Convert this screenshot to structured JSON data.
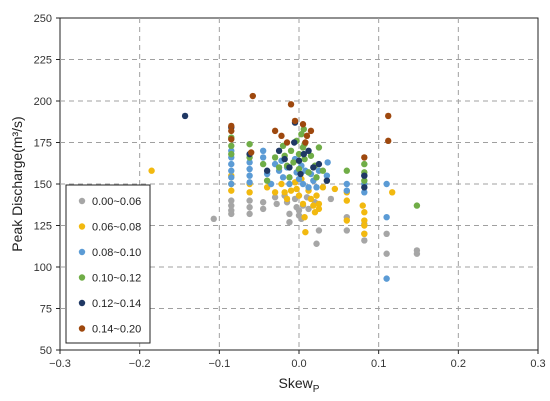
{
  "chart_data": {
    "type": "scatter",
    "xlabel": "Skew",
    "xlabel_sub": "P",
    "ylabel": "Peak Discharge(m³/s)",
    "xlim": [
      -0.3,
      0.3
    ],
    "ylim": [
      50,
      250
    ],
    "xticks": [
      -0.3,
      -0.2,
      -0.1,
      0.0,
      0.1,
      0.2,
      0.3
    ],
    "xtick_labels": [
      "−0.3",
      "−0.2",
      "−0.1",
      "0.0",
      "0.1",
      "0.2",
      "0.3"
    ],
    "yticks": [
      50,
      75,
      100,
      125,
      150,
      175,
      200,
      225,
      250
    ],
    "ytick_labels": [
      "50",
      "75",
      "100",
      "125",
      "150",
      "175",
      "200",
      "225",
      "250"
    ],
    "grid": true,
    "legend_position": "bottom-left",
    "series": [
      {
        "name": "0.00~0.06",
        "color": "#a6a6a6",
        "points": [
          [
            -0.107,
            129
          ],
          [
            -0.085,
            140
          ],
          [
            -0.085,
            137
          ],
          [
            -0.085,
            134
          ],
          [
            -0.085,
            132
          ],
          [
            -0.062,
            140
          ],
          [
            -0.062,
            136
          ],
          [
            -0.062,
            132
          ],
          [
            -0.045,
            139
          ],
          [
            -0.045,
            135
          ],
          [
            -0.03,
            142
          ],
          [
            -0.028,
            138
          ],
          [
            -0.018,
            143
          ],
          [
            -0.015,
            139
          ],
          [
            -0.012,
            132
          ],
          [
            -0.005,
            141
          ],
          [
            -0.003,
            136
          ],
          [
            0.0,
            134
          ],
          [
            0.0,
            131
          ],
          [
            0.003,
            129
          ],
          [
            0.005,
            137
          ],
          [
            0.01,
            142
          ],
          [
            0.012,
            135
          ],
          [
            0.02,
            139
          ],
          [
            0.022,
            114
          ],
          [
            0.025,
            122
          ],
          [
            0.04,
            141
          ],
          [
            0.06,
            130
          ],
          [
            0.06,
            122
          ],
          [
            0.082,
            126
          ],
          [
            0.082,
            120
          ],
          [
            0.082,
            116
          ],
          [
            0.11,
            108
          ],
          [
            0.11,
            120
          ],
          [
            0.148,
            110
          ],
          [
            0.148,
            108
          ],
          [
            -0.012,
            127
          ]
        ]
      },
      {
        "name": "0.06~0.08",
        "color": "#f2b90f",
        "points": [
          [
            -0.185,
            158
          ],
          [
            -0.085,
            155
          ],
          [
            -0.085,
            150
          ],
          [
            -0.085,
            146
          ],
          [
            -0.062,
            150
          ],
          [
            -0.062,
            145
          ],
          [
            -0.04,
            148
          ],
          [
            -0.03,
            145
          ],
          [
            -0.022,
            150
          ],
          [
            -0.018,
            145
          ],
          [
            -0.015,
            141
          ],
          [
            -0.01,
            146
          ],
          [
            -0.005,
            151
          ],
          [
            -0.003,
            147
          ],
          [
            0.0,
            143
          ],
          [
            0.003,
            153
          ],
          [
            0.005,
            138
          ],
          [
            0.007,
            130
          ],
          [
            0.008,
            121
          ],
          [
            0.012,
            146
          ],
          [
            0.015,
            141
          ],
          [
            0.018,
            137
          ],
          [
            0.02,
            133
          ],
          [
            0.022,
            143
          ],
          [
            0.025,
            138
          ],
          [
            0.025,
            135
          ],
          [
            0.03,
            148
          ],
          [
            0.035,
            152
          ],
          [
            0.045,
            147
          ],
          [
            0.06,
            145
          ],
          [
            0.06,
            140
          ],
          [
            0.06,
            128
          ],
          [
            0.08,
            137
          ],
          [
            0.082,
            133
          ],
          [
            0.082,
            128
          ],
          [
            0.082,
            125
          ],
          [
            0.082,
            120
          ],
          [
            0.117,
            145
          ]
        ]
      },
      {
        "name": "0.08~0.10",
        "color": "#5b9bd5",
        "points": [
          [
            -0.085,
            170
          ],
          [
            -0.085,
            166
          ],
          [
            -0.085,
            162
          ],
          [
            -0.085,
            158
          ],
          [
            -0.085,
            154
          ],
          [
            -0.085,
            150
          ],
          [
            -0.062,
            163
          ],
          [
            -0.062,
            159
          ],
          [
            -0.062,
            155
          ],
          [
            -0.062,
            151
          ],
          [
            -0.045,
            170
          ],
          [
            -0.045,
            166
          ],
          [
            -0.04,
            156
          ],
          [
            -0.035,
            150
          ],
          [
            -0.03,
            162
          ],
          [
            -0.025,
            158
          ],
          [
            -0.022,
            164
          ],
          [
            -0.02,
            154
          ],
          [
            -0.015,
            160
          ],
          [
            -0.012,
            150
          ],
          [
            -0.005,
            165
          ],
          [
            -0.003,
            157
          ],
          [
            0.0,
            153
          ],
          [
            0.003,
            161
          ],
          [
            0.005,
            150
          ],
          [
            0.008,
            158
          ],
          [
            0.012,
            148
          ],
          [
            0.015,
            156
          ],
          [
            0.018,
            152
          ],
          [
            0.022,
            148
          ],
          [
            0.025,
            158
          ],
          [
            0.035,
            155
          ],
          [
            0.06,
            150
          ],
          [
            0.06,
            146
          ],
          [
            0.082,
            155
          ],
          [
            0.082,
            150
          ],
          [
            0.082,
            145
          ],
          [
            0.11,
            150
          ],
          [
            0.11,
            130
          ],
          [
            0.11,
            93
          ],
          [
            0.036,
            163
          ]
        ]
      },
      {
        "name": "0.10~0.12",
        "color": "#70ad47",
        "points": [
          [
            -0.085,
            178
          ],
          [
            -0.085,
            173
          ],
          [
            -0.085,
            168
          ],
          [
            -0.062,
            174
          ],
          [
            -0.062,
            166
          ],
          [
            -0.045,
            162
          ],
          [
            -0.04,
            152
          ],
          [
            -0.03,
            166
          ],
          [
            -0.025,
            160
          ],
          [
            -0.02,
            173
          ],
          [
            -0.018,
            167
          ],
          [
            -0.015,
            161
          ],
          [
            -0.01,
            170
          ],
          [
            -0.007,
            163
          ],
          [
            -0.003,
            176
          ],
          [
            0.0,
            168
          ],
          [
            0.0,
            159
          ],
          [
            0.003,
            180
          ],
          [
            0.005,
            172
          ],
          [
            0.007,
            165
          ],
          [
            0.012,
            157
          ],
          [
            0.015,
            167
          ],
          [
            0.02,
            161
          ],
          [
            0.022,
            154
          ],
          [
            0.025,
            172
          ],
          [
            0.03,
            158
          ],
          [
            0.06,
            158
          ],
          [
            0.082,
            162
          ],
          [
            0.082,
            157
          ],
          [
            0.082,
            152
          ],
          [
            0.148,
            137
          ],
          [
            0.006,
            183
          ],
          [
            0.007,
            174
          ],
          [
            -0.012,
            154
          ]
        ]
      },
      {
        "name": "0.12~0.14",
        "color": "#1f3864",
        "points": [
          [
            -0.143,
            191
          ],
          [
            -0.085,
            184
          ],
          [
            -0.062,
            168
          ],
          [
            -0.04,
            158
          ],
          [
            -0.025,
            170
          ],
          [
            -0.018,
            165
          ],
          [
            -0.012,
            160
          ],
          [
            -0.006,
            175
          ],
          [
            -0.005,
            187
          ],
          [
            0.0,
            164
          ],
          [
            0.002,
            156
          ],
          [
            0.006,
            168
          ],
          [
            0.012,
            170
          ],
          [
            0.018,
            160
          ],
          [
            0.025,
            162
          ],
          [
            0.082,
            155
          ],
          [
            0.082,
            148
          ],
          [
            0.035,
            152
          ]
        ]
      },
      {
        "name": "0.14~0.20",
        "color": "#9e480e",
        "points": [
          [
            -0.085,
            185
          ],
          [
            -0.085,
            182
          ],
          [
            -0.085,
            177
          ],
          [
            -0.058,
            203
          ],
          [
            -0.06,
            169
          ],
          [
            -0.03,
            182
          ],
          [
            -0.022,
            179
          ],
          [
            -0.015,
            175
          ],
          [
            -0.01,
            198
          ],
          [
            -0.005,
            188
          ],
          [
            0.005,
            186
          ],
          [
            0.01,
            179
          ],
          [
            0.015,
            182
          ],
          [
            0.008,
            175
          ],
          [
            0.082,
            166
          ],
          [
            0.112,
            191
          ],
          [
            0.112,
            176
          ]
        ]
      }
    ]
  }
}
